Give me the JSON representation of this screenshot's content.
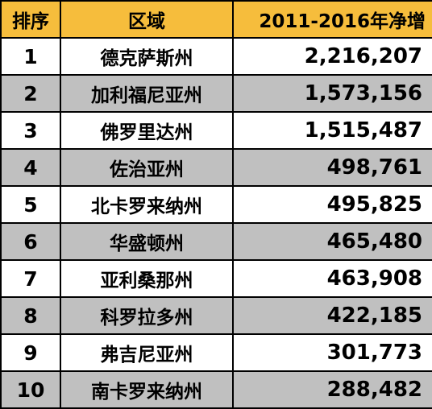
{
  "table": {
    "headers": {
      "rank": "排序",
      "region": "区域",
      "gain": "2011-2016年净增"
    },
    "rows": [
      {
        "rank": "1",
        "region": "德克萨斯州",
        "gain": "2,216,207"
      },
      {
        "rank": "2",
        "region": "加利福尼亚州",
        "gain": "1,573,156"
      },
      {
        "rank": "3",
        "region": "佛罗里达州",
        "gain": "1,515,487"
      },
      {
        "rank": "4",
        "region": "佐治亚州",
        "gain": "498,761"
      },
      {
        "rank": "5",
        "region": "北卡罗来纳州",
        "gain": "495,825"
      },
      {
        "rank": "6",
        "region": "华盛顿州",
        "gain": "465,480"
      },
      {
        "rank": "7",
        "region": "亚利桑那州",
        "gain": "463,908"
      },
      {
        "rank": "8",
        "region": "科罗拉多州",
        "gain": "422,185"
      },
      {
        "rank": "9",
        "region": "弗吉尼亚州",
        "gain": "301,773"
      },
      {
        "rank": "10",
        "region": "南卡罗来纳州",
        "gain": "288,482"
      }
    ]
  },
  "colors": {
    "header_bg": "#f6bd3c",
    "stripe_bg": "#c0c0c0",
    "row_bg": "#ffffff",
    "border": "#000000"
  }
}
